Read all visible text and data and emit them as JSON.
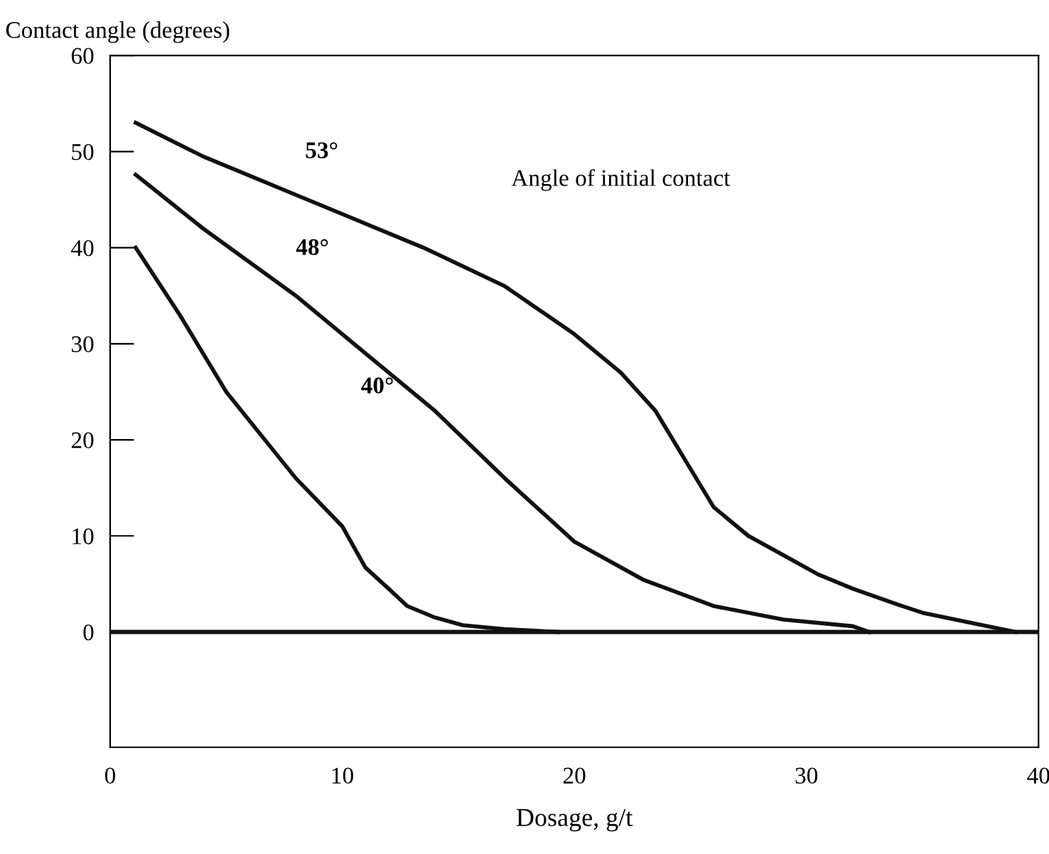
{
  "chart_data": {
    "type": "line",
    "ylabel": "Contact angle (degrees)",
    "xlabel": "Dosage, g/t",
    "xlim": [
      0,
      40
    ],
    "xticks": [
      0,
      10,
      20,
      30,
      40
    ],
    "ylim": [
      -12,
      60
    ],
    "yticks": [
      0,
      10,
      20,
      30,
      40,
      50,
      60
    ],
    "grid": false,
    "legend": false,
    "marker": "none",
    "line_style": "solid",
    "series": [
      {
        "color": "#111111",
        "x": [
          1.1,
          4,
          7.5,
          10.5,
          13.5,
          17,
          20,
          22,
          23.5,
          25,
          26,
          27.5,
          29,
          30.5,
          32,
          34,
          35,
          37,
          39
        ],
        "values": [
          53,
          49.5,
          46,
          43,
          40,
          36,
          31,
          27,
          23,
          17,
          13,
          10,
          8,
          6,
          4.5,
          2.8,
          2,
          1,
          0
        ]
      },
      {
        "color": "#111111",
        "x": [
          1.1,
          4,
          8,
          11,
          14,
          17,
          20,
          23,
          26,
          29,
          32,
          32.7
        ],
        "values": [
          47.6,
          42,
          35,
          29,
          23,
          16,
          9.4,
          5.4,
          2.7,
          1.3,
          0.6,
          0
        ]
      },
      {
        "color": "#111111",
        "x": [
          1.1,
          3,
          5,
          8,
          10,
          11,
          12,
          12.8,
          14,
          15.2,
          17,
          19.3
        ],
        "values": [
          40,
          33,
          25,
          16,
          11,
          6.7,
          4.5,
          2.7,
          1.5,
          0.7,
          0.3,
          0
        ]
      }
    ],
    "ref_lines": [
      {
        "axis": "y",
        "value": 0,
        "color": "#111111"
      }
    ],
    "annotations": [
      "53°",
      "48°",
      "40°",
      "Angle of initial contact"
    ]
  }
}
